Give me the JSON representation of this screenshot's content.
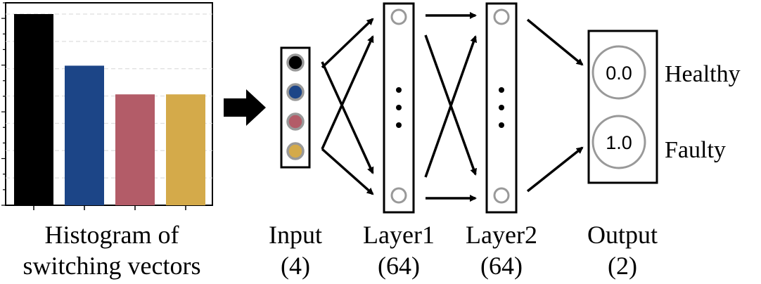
{
  "histogram": {
    "caption_line1": "Histogram of",
    "caption_line2": "switching vectors",
    "values": [
      1.0,
      0.73,
      0.58,
      0.58
    ],
    "colors": [
      "#000000",
      "#1c4587",
      "#b35c68",
      "#d4aa4a"
    ]
  },
  "input": {
    "name": "Input",
    "size": "(4)",
    "node_colors": [
      "#000000",
      "#1c4587",
      "#b35c68",
      "#d4aa4a"
    ]
  },
  "layer1": {
    "name": "Layer1",
    "size": "(64)"
  },
  "layer2": {
    "name": "Layer2",
    "size": "(64)"
  },
  "output": {
    "name": "Output",
    "size": "(2)",
    "nodes": [
      {
        "value": "0.0",
        "label": "Healthy"
      },
      {
        "value": "1.0",
        "label": "Faulty"
      }
    ]
  },
  "colors": {
    "neuron_outline": "#999999",
    "stroke": "#000000",
    "grid": "#dddddd"
  }
}
